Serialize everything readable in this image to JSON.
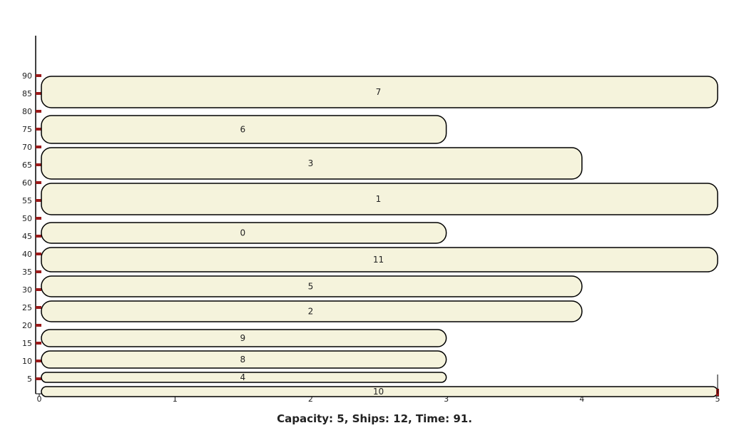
{
  "caption": "Capacity:  5, Ships:  12, Time:  91.",
  "colors": {
    "box_fill": "#f5f3dc",
    "box_stroke": "#000000",
    "tick_mark": "#9b1b1b",
    "axis": "#000000"
  },
  "chart_data": {
    "type": "gantt",
    "title": "",
    "xlabel": "",
    "ylabel": "",
    "xlim": [
      0,
      5
    ],
    "ylim": [
      0,
      100
    ],
    "x_ticks": [
      0,
      1,
      2,
      3,
      4,
      5
    ],
    "y_ticks": [
      5,
      10,
      15,
      20,
      25,
      30,
      35,
      40,
      45,
      50,
      55,
      60,
      65,
      70,
      75,
      80,
      85,
      90
    ],
    "ships": [
      {
        "label": "10",
        "x_start": 0,
        "x_end": 5,
        "t_start": 0,
        "t_end": 3
      },
      {
        "label": "4",
        "x_start": 0,
        "x_end": 3,
        "t_start": 3,
        "t_end": 7
      },
      {
        "label": "8",
        "x_start": 0,
        "x_end": 3,
        "t_start": 7,
        "t_end": 13
      },
      {
        "label": "9",
        "x_start": 0,
        "x_end": 3,
        "t_start": 13,
        "t_end": 19
      },
      {
        "label": "2",
        "x_start": 0,
        "x_end": 4,
        "t_start": 20,
        "t_end": 27
      },
      {
        "label": "5",
        "x_start": 0,
        "x_end": 4,
        "t_start": 27,
        "t_end": 34
      },
      {
        "label": "11",
        "x_start": 0,
        "x_end": 5,
        "t_start": 34,
        "t_end": 42
      },
      {
        "label": "0",
        "x_start": 0,
        "x_end": 3,
        "t_start": 42,
        "t_end": 49
      },
      {
        "label": "1",
        "x_start": 0,
        "x_end": 5,
        "t_start": 50,
        "t_end": 60
      },
      {
        "label": "3",
        "x_start": 0,
        "x_end": 4,
        "t_start": 60,
        "t_end": 70
      },
      {
        "label": "6",
        "x_start": 0,
        "x_end": 3,
        "t_start": 70,
        "t_end": 79
      },
      {
        "label": "7",
        "x_start": 0,
        "x_end": 5,
        "t_start": 80,
        "t_end": 90
      }
    ]
  }
}
